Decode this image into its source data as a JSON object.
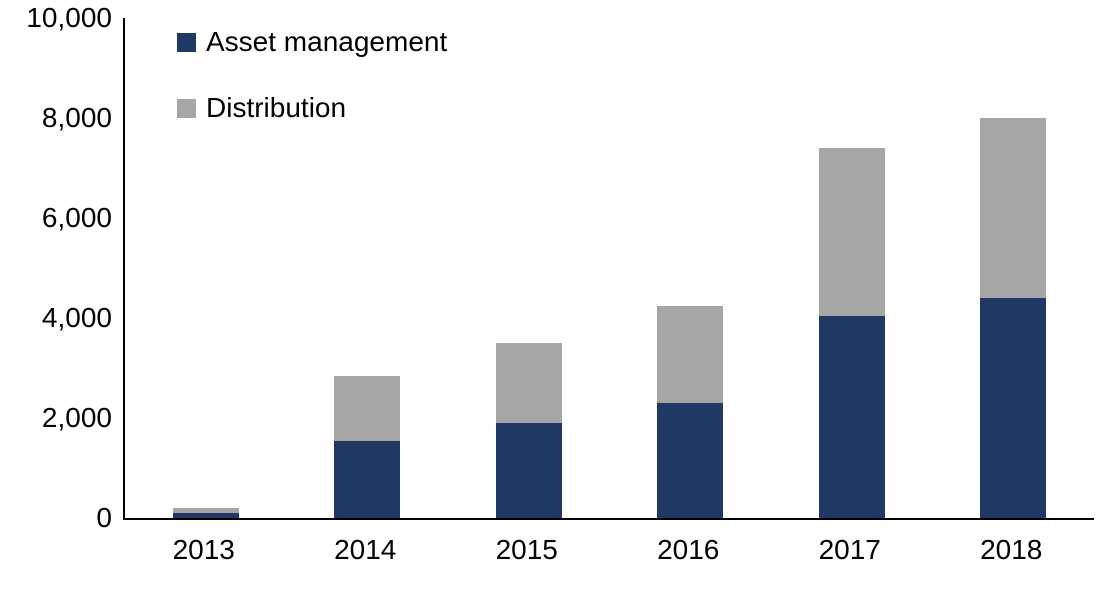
{
  "chart_data": {
    "type": "bar",
    "stacked": true,
    "title": "",
    "xlabel": "",
    "ylabel": "",
    "categories": [
      "2013",
      "2014",
      "2015",
      "2016",
      "2017",
      "2018"
    ],
    "series": [
      {
        "name": "Asset management",
        "color": "#1F3864",
        "values": [
          100,
          1550,
          1900,
          2300,
          4050,
          4400
        ]
      },
      {
        "name": "Distribution",
        "color": "#A6A6A6",
        "values": [
          100,
          1300,
          1600,
          1950,
          3350,
          3600
        ]
      }
    ],
    "totals": [
      200,
      2850,
      3500,
      4250,
      7400,
      8000
    ],
    "ylim": [
      0,
      10000
    ],
    "yticks": [
      0,
      2000,
      4000,
      6000,
      8000,
      10000
    ],
    "ytick_labels": [
      "0",
      "2,000",
      "4,000",
      "6,000",
      "8,000",
      "10,000"
    ],
    "grid": false,
    "legend_position": "top-left-inside",
    "axis_color": "#000000"
  }
}
